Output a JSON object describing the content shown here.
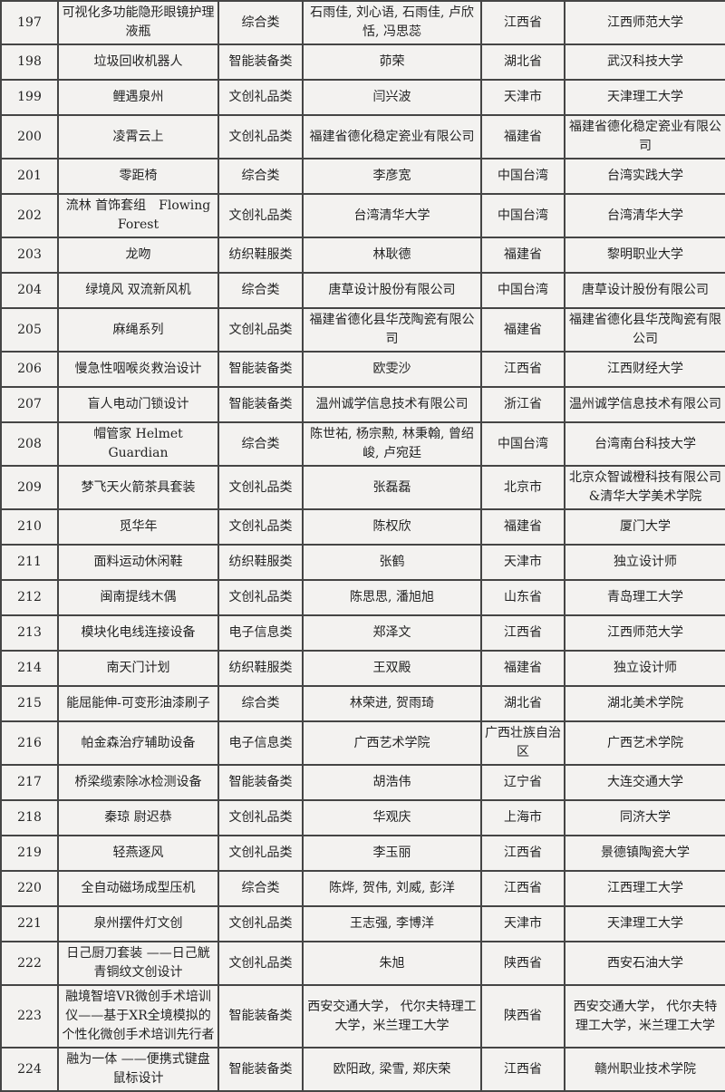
{
  "page": {
    "background_color": "#f3f2f0",
    "grid_color": "#454545",
    "text_color": "#232323"
  },
  "table": {
    "rows": [
      {
        "no": "197",
        "name": "可视化多功能隐形眼镜护理液瓶",
        "category": "综合类",
        "authors": "石雨佳, 刘心语, 石雨佳, 卢欣恬, 冯思蕊",
        "province": "江西省",
        "org": "江西师范大学"
      },
      {
        "no": "198",
        "name": "垃圾回收机器人",
        "category": "智能装备类",
        "authors": "茆荣",
        "province": "湖北省",
        "org": "武汉科技大学"
      },
      {
        "no": "199",
        "name": "鲤遇泉州",
        "category": "文创礼品类",
        "authors": "闫兴波",
        "province": "天津市",
        "org": "天津理工大学"
      },
      {
        "no": "200",
        "name": "凌霄云上",
        "category": "文创礼品类",
        "authors": "福建省德化稳定瓷业有限公司",
        "province": "福建省",
        "org": "福建省德化稳定瓷业有限公司"
      },
      {
        "no": "201",
        "name": "零距椅",
        "category": "综合类",
        "authors": "李彦宽",
        "province": "中国台湾",
        "org": "台湾实践大学"
      },
      {
        "no": "202",
        "name": "流林 首饰套组　Flowing Forest",
        "category": "文创礼品类",
        "authors": "台湾清华大学",
        "province": "中国台湾",
        "org": "台湾清华大学"
      },
      {
        "no": "203",
        "name": "龙吻",
        "category": "纺织鞋服类",
        "authors": "林耿德",
        "province": "福建省",
        "org": "黎明职业大学"
      },
      {
        "no": "204",
        "name": "绿境风 双流新风机",
        "category": "综合类",
        "authors": "唐草设计股份有限公司",
        "province": "中国台湾",
        "org": "唐草设计股份有限公司"
      },
      {
        "no": "205",
        "name": "麻绳系列",
        "category": "文创礼品类",
        "authors": "福建省德化县华茂陶瓷有限公司",
        "province": "福建省",
        "org": "福建省德化县华茂陶瓷有限公司"
      },
      {
        "no": "206",
        "name": "慢急性咽喉炎救治设计",
        "category": "智能装备类",
        "authors": "欧雯沙",
        "province": "江西省",
        "org": "江西财经大学"
      },
      {
        "no": "207",
        "name": "盲人电动门锁设计",
        "category": "智能装备类",
        "authors": "温州诚学信息技术有限公司",
        "province": "浙江省",
        "org": "温州诚学信息技术有限公司"
      },
      {
        "no": "208",
        "name": "帽管家 Helmet Guardian",
        "category": "综合类",
        "authors": "陈世祐, 杨宗勲, 林秉翰, 曾绍峻, 卢宛廷",
        "province": "中国台湾",
        "org": "台湾南台科技大学"
      },
      {
        "no": "209",
        "name": "梦飞天火箭茶具套装",
        "category": "文创礼品类",
        "authors": "张磊磊",
        "province": "北京市",
        "org": "北京众智诚橙科技有限公司&清华大学美术学院"
      },
      {
        "no": "210",
        "name": "觅华年",
        "category": "文创礼品类",
        "authors": "陈权欣",
        "province": "福建省",
        "org": "厦门大学"
      },
      {
        "no": "211",
        "name": "面料运动休闲鞋",
        "category": "纺织鞋服类",
        "authors": "张鹤",
        "province": "天津市",
        "org": "独立设计师"
      },
      {
        "no": "212",
        "name": "闽南提线木偶",
        "category": "文创礼品类",
        "authors": "陈思思, 潘旭旭",
        "province": "山东省",
        "org": "青岛理工大学"
      },
      {
        "no": "213",
        "name": "模块化电线连接设备",
        "category": "电子信息类",
        "authors": "郑泽文",
        "province": "江西省",
        "org": "江西师范大学"
      },
      {
        "no": "214",
        "name": "南天门计划",
        "category": "纺织鞋服类",
        "authors": "王双殿",
        "province": "福建省",
        "org": "独立设计师"
      },
      {
        "no": "215",
        "name": "能屈能伸-可变形油漆刷子",
        "category": "综合类",
        "authors": "林荣进, 贺雨琦",
        "province": "湖北省",
        "org": "湖北美术学院"
      },
      {
        "no": "216",
        "name": "帕金森治疗辅助设备",
        "category": "电子信息类",
        "authors": "广西艺术学院",
        "province": "广西壮族自治区",
        "org": "广西艺术学院"
      },
      {
        "no": "217",
        "name": "桥梁缆索除冰检测设备",
        "category": "智能装备类",
        "authors": "胡浩伟",
        "province": "辽宁省",
        "org": "大连交通大学"
      },
      {
        "no": "218",
        "name": "秦琼 尉迟恭",
        "category": "文创礼品类",
        "authors": "华观庆",
        "province": "上海市",
        "org": "同济大学"
      },
      {
        "no": "219",
        "name": "轻燕逐风",
        "category": "文创礼品类",
        "authors": "李玉丽",
        "province": "江西省",
        "org": "景德镇陶瓷大学"
      },
      {
        "no": "220",
        "name": "全自动磁场成型压机",
        "category": "综合类",
        "authors": "陈烨, 贺伟, 刘威, 彭洋",
        "province": "江西省",
        "org": "江西理工大学"
      },
      {
        "no": "221",
        "name": "泉州摆件灯文创",
        "category": "文创礼品类",
        "authors": "王志强, 李博洋",
        "province": "天津市",
        "org": "天津理工大学"
      },
      {
        "no": "222",
        "name": "日己厨刀套装 ——日己觥青铜纹文创设计",
        "category": "文创礼品类",
        "authors": "朱旭",
        "province": "陕西省",
        "org": "西安石油大学"
      },
      {
        "no": "223",
        "name": "融境智培VR微创手术培训仪——基于XR全境模拟的个性化微创手术培训先行者",
        "category": "智能装备类",
        "authors": "西安交通大学， 代尔夫特理工大学，米兰理工大学",
        "province": "陕西省",
        "org": "西安交通大学， 代尔夫特理工大学，米兰理工大学"
      },
      {
        "no": "224",
        "name": "融为一体 ——便携式键盘鼠标设计",
        "category": "智能装备类",
        "authors": "欧阳政, 梁雪, 郑庆荣",
        "province": "江西省",
        "org": "赣州职业技术学院"
      }
    ]
  }
}
